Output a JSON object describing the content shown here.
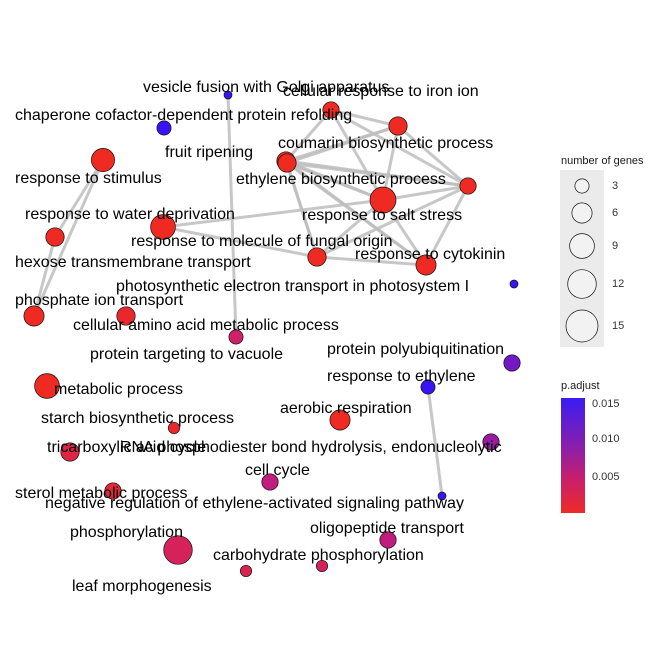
{
  "colors": {
    "edge": "#bdbdbd",
    "p_high": "#3a14f5",
    "p_low": "#ee2a22"
  },
  "legend": {
    "size_title": "number of genes",
    "size_items": [
      {
        "value": 3,
        "label": "3"
      },
      {
        "value": 6,
        "label": "6"
      },
      {
        "value": 9,
        "label": "9"
      },
      {
        "value": 12,
        "label": "12"
      },
      {
        "value": 15,
        "label": "15"
      }
    ],
    "color_title": "p.adjust",
    "color_ticks": [
      "0.015",
      "0.010",
      "0.005"
    ]
  },
  "nodes": [
    {
      "id": "vesicle",
      "label": "vesicle fusion with Golgi apparatus",
      "genes": 1,
      "p": 0.016
    },
    {
      "id": "chaperone",
      "label": "chaperone cofactor-dependent protein refolding",
      "genes": 3,
      "p": 0.016
    },
    {
      "id": "iron",
      "label": "cellular response to iron ion",
      "genes": 4,
      "p": 0.001
    },
    {
      "id": "refold_node",
      "label": "",
      "genes": 5,
      "p": 0.001
    },
    {
      "id": "fruit",
      "label": "fruit ripening",
      "genes": 5,
      "p": 0.001
    },
    {
      "id": "coumarin",
      "label": "coumarin biosynthetic process",
      "genes": 4,
      "p": 0.001
    },
    {
      "id": "stimulus",
      "label": "response to stimulus",
      "genes": 8,
      "p": 0.001
    },
    {
      "id": "ethylene_bio",
      "label": "ethylene biosynthetic process",
      "genes": 5,
      "p": 0.001
    },
    {
      "id": "salt",
      "label": "response to salt stress",
      "genes": 10,
      "p": 0.001
    },
    {
      "id": "water",
      "label": "response to water deprivation",
      "genes": 5,
      "p": 0.001
    },
    {
      "id": "fungal",
      "label": "response to molecule of fungal origin",
      "genes": 9,
      "p": 0.001
    },
    {
      "id": "cytokinin",
      "label": "response to cytokinin",
      "genes": 6,
      "p": 0.001
    },
    {
      "id": "hexose",
      "label": "hexose transmembrane transport",
      "genes": 5,
      "p": 0.001
    },
    {
      "id": "hexose_node",
      "label": "",
      "genes": 5,
      "p": 0.001
    },
    {
      "id": "photosystem",
      "label": "photosynthetic electron transport in photosystem I",
      "genes": 1,
      "p": 0.016
    },
    {
      "id": "phosphate",
      "label": "phosphate ion transport",
      "genes": 6,
      "p": 0.001
    },
    {
      "id": "aminoacid",
      "label": "cellular amino acid metabolic process",
      "genes": 5,
      "p": 0.002
    },
    {
      "id": "vacuole",
      "label": "protein targeting to vacuole",
      "genes": 3,
      "p": 0.007
    },
    {
      "id": "polyubiq",
      "label": "protein polyubiquitination",
      "genes": 4,
      "p": 0.013
    },
    {
      "id": "resp_ethylene",
      "label": "response to ethylene",
      "genes": 3,
      "p": 0.016
    },
    {
      "id": "metabolic",
      "label": "metabolic process",
      "genes": 9,
      "p": 0.001
    },
    {
      "id": "aerobic",
      "label": "aerobic respiration",
      "genes": 6,
      "p": 0.001
    },
    {
      "id": "starch",
      "label": "starch biosynthetic process",
      "genes": 2,
      "p": 0.002
    },
    {
      "id": "trna",
      "label": "tricarboxylic acid cycle",
      "genes": 5,
      "p": 0.004
    },
    {
      "id": "rna_phospho",
      "label": "RNA phosphodiester bond hydrolysis, endonucleolytic",
      "genes": 4,
      "p": 0.011
    },
    {
      "id": "cellcycle",
      "label": "cell cycle",
      "genes": 4,
      "p": 0.009
    },
    {
      "id": "sterol",
      "label": "sterol metabolic process",
      "genes": 4,
      "p": 0.003
    },
    {
      "id": "neg_reg",
      "label": "negative regulation of ethylene-activated signaling pathway",
      "genes": 1,
      "p": 0.016
    },
    {
      "id": "phosphorylation",
      "label": "phosphorylation",
      "genes": 12,
      "p": 0.006
    },
    {
      "id": "oligo",
      "label": "oligopeptide transport",
      "genes": 4,
      "p": 0.009
    },
    {
      "id": "carb",
      "label": "carbohydrate phosphorylation",
      "genes": 2,
      "p": 0.006
    },
    {
      "id": "leaf",
      "label": "leaf morphogenesis",
      "genes": 2,
      "p": 0.005
    }
  ],
  "edges": [
    [
      "refold_node",
      "coumarin"
    ],
    [
      "refold_node",
      "ethylene_bio"
    ],
    [
      "refold_node",
      "fruit"
    ],
    [
      "refold_node",
      "salt"
    ],
    [
      "iron",
      "coumarin"
    ],
    [
      "iron",
      "fruit"
    ],
    [
      "iron",
      "salt"
    ],
    [
      "iron",
      "refold_node"
    ],
    [
      "fruit",
      "ethylene_bio"
    ],
    [
      "fruit",
      "salt"
    ],
    [
      "fruit",
      "cytokinin"
    ],
    [
      "fruit",
      "coumarin"
    ],
    [
      "coumarin",
      "ethylene_bio"
    ],
    [
      "coumarin",
      "salt"
    ],
    [
      "coumarin",
      "cytokinin"
    ],
    [
      "ethylene_bio",
      "salt"
    ],
    [
      "ethylene_bio",
      "cytokinin"
    ],
    [
      "ethylene_bio",
      "hexose_node"
    ],
    [
      "salt",
      "cytokinin"
    ],
    [
      "salt",
      "hexose_node"
    ],
    [
      "salt",
      "fungal"
    ],
    [
      "fruit",
      "hexose_node"
    ],
    [
      "hexose_node",
      "cytokinin"
    ],
    [
      "coumarin",
      "hexose_node"
    ],
    [
      "fungal",
      "hexose_node"
    ],
    [
      "stimulus",
      "water"
    ],
    [
      "water",
      "phosphate"
    ],
    [
      "stimulus",
      "phosphate"
    ],
    [
      "vesicle",
      "vacuole"
    ],
    [
      "resp_ethylene",
      "neg_reg"
    ]
  ]
}
